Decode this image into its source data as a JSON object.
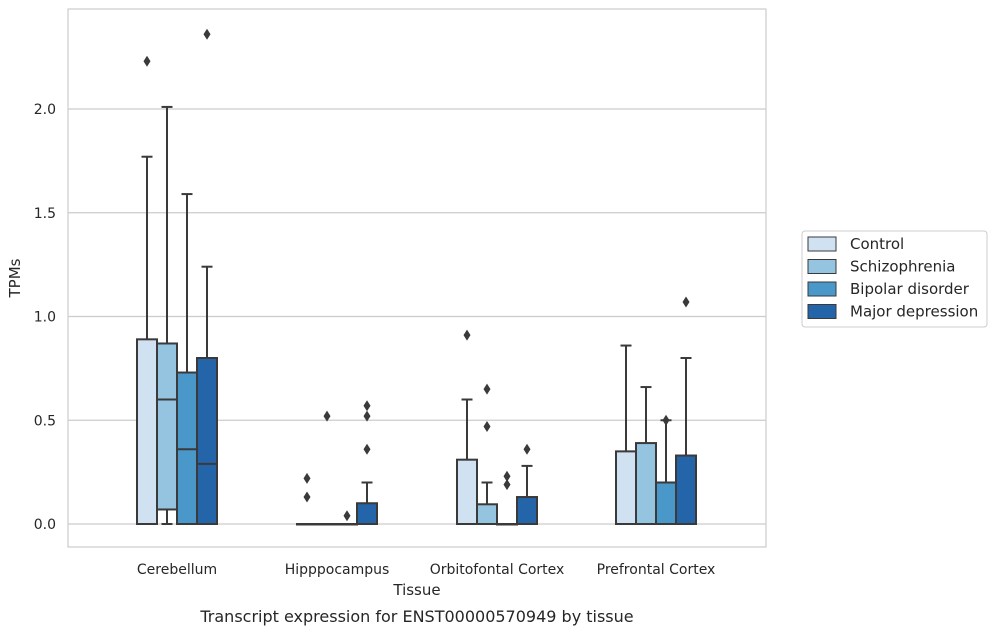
{
  "chart_data": {
    "type": "box",
    "caption": "Transcript expression for ENST00000570949 by tissue",
    "xlabel": "Tissue",
    "ylabel": "TPMs",
    "ylim": [
      -0.11,
      2.48
    ],
    "yticks": [
      0.0,
      0.5,
      1.0,
      1.5,
      2.0
    ],
    "ytick_labels": [
      "0.0",
      "0.5",
      "1.0",
      "1.5",
      "2.0"
    ],
    "grid": "horizontal",
    "legend_position": "right",
    "categories": [
      "Cerebellum",
      "Hipppocampus",
      "Orbitofontal Cortex",
      "Prefrontal Cortex"
    ],
    "series": [
      {
        "name": "Control",
        "color": "#d0e1f2",
        "boxes": [
          {
            "whislo": 0.0,
            "q1": 0.0,
            "med": 0.0,
            "q3": 0.89,
            "whishi": 1.77,
            "fliers": [
              2.23
            ]
          },
          {
            "whislo": 0.0,
            "q1": 0.0,
            "med": 0.0,
            "q3": 0.0,
            "whishi": 0.0,
            "fliers": [
              0.22,
              0.13
            ]
          },
          {
            "whislo": 0.0,
            "q1": 0.0,
            "med": 0.0,
            "q3": 0.31,
            "whishi": 0.6,
            "fliers": [
              0.91
            ]
          },
          {
            "whislo": 0.0,
            "q1": 0.0,
            "med": 0.0,
            "q3": 0.35,
            "whishi": 0.86,
            "fliers": []
          }
        ]
      },
      {
        "name": "Schizophrenia",
        "color": "#94c4df",
        "boxes": [
          {
            "whislo": 0.0,
            "q1": 0.07,
            "med": 0.6,
            "q3": 0.87,
            "whishi": 2.01,
            "fliers": []
          },
          {
            "whislo": 0.0,
            "q1": 0.0,
            "med": 0.0,
            "q3": 0.0,
            "whishi": 0.0,
            "fliers": [
              0.52
            ]
          },
          {
            "whislo": 0.0,
            "q1": 0.0,
            "med": 0.0,
            "q3": 0.095,
            "whishi": 0.2,
            "fliers": [
              0.65,
              0.47
            ]
          },
          {
            "whislo": 0.0,
            "q1": 0.0,
            "med": 0.0,
            "q3": 0.39,
            "whishi": 0.66,
            "fliers": []
          }
        ]
      },
      {
        "name": "Bipolar disorder",
        "color": "#4a98c9",
        "boxes": [
          {
            "whislo": 0.0,
            "q1": 0.0,
            "med": 0.36,
            "q3": 0.73,
            "whishi": 1.59,
            "fliers": []
          },
          {
            "whislo": 0.0,
            "q1": 0.0,
            "med": 0.0,
            "q3": 0.0,
            "whishi": 0.0,
            "fliers": [
              0.04
            ]
          },
          {
            "whislo": 0.0,
            "q1": 0.0,
            "med": 0.0,
            "q3": 0.0,
            "whishi": 0.0,
            "fliers": [
              0.23,
              0.19
            ]
          },
          {
            "whislo": 0.0,
            "q1": 0.0,
            "med": 0.0,
            "q3": 0.2,
            "whishi": 0.5,
            "fliers": [
              0.5
            ]
          }
        ]
      },
      {
        "name": "Major depression",
        "color": "#2464a8",
        "boxes": [
          {
            "whislo": 0.0,
            "q1": 0.0,
            "med": 0.29,
            "q3": 0.8,
            "whishi": 1.24,
            "fliers": [
              2.36
            ]
          },
          {
            "whislo": 0.0,
            "q1": 0.0,
            "med": 0.0,
            "q3": 0.1,
            "whishi": 0.2,
            "fliers": [
              0.57,
              0.52,
              0.36
            ]
          },
          {
            "whislo": 0.0,
            "q1": 0.0,
            "med": 0.0,
            "q3": 0.13,
            "whishi": 0.28,
            "fliers": [
              0.36
            ]
          },
          {
            "whislo": 0.0,
            "q1": 0.0,
            "med": 0.0,
            "q3": 0.33,
            "whishi": 0.8,
            "fliers": [
              1.07
            ]
          }
        ]
      }
    ]
  }
}
